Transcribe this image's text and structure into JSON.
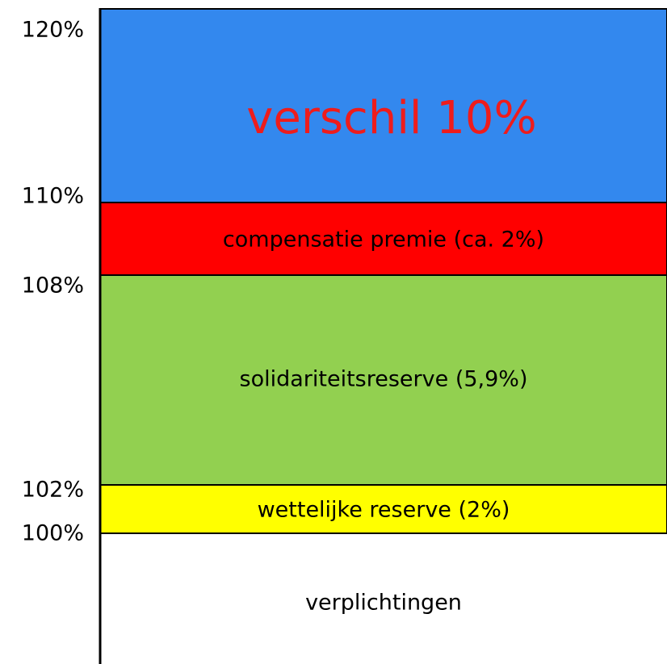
{
  "levels": [
    "120%",
    "110%",
    "108%",
    "102%",
    "100%"
  ],
  "blocks": [
    "verschil 10%",
    "compensatie premie (ca. 2%)",
    "solidariteitsreserve (5,9%)",
    "wettelijke reserve (2%)",
    "verplichtingen"
  ]
}
